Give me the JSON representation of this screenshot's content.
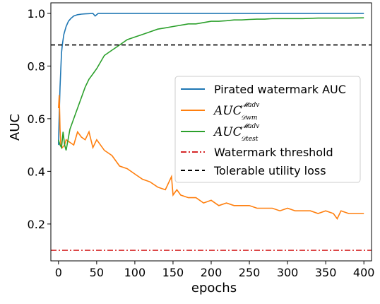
{
  "chart_data": {
    "type": "line",
    "xlabel": "epochs",
    "ylabel": "AUC",
    "xlim": [
      -10,
      410
    ],
    "ylim": [
      0.06,
      1.04
    ],
    "xticks": [
      0,
      50,
      100,
      150,
      200,
      250,
      300,
      350,
      400
    ],
    "yticks": [
      0.2,
      0.4,
      0.6,
      0.8,
      1.0
    ],
    "xtick_labels": [
      "0",
      "50",
      "100",
      "150",
      "200",
      "250",
      "300",
      "350",
      "400"
    ],
    "ytick_labels": [
      "0.2",
      "0.4",
      "0.6",
      "0.8",
      "1.0"
    ],
    "legend_position": "center-right",
    "series": [
      {
        "name": "Pirated watermark AUC",
        "color": "#1f77b4",
        "style": "solid",
        "x": [
          0,
          1,
          2,
          3,
          4,
          5,
          7,
          10,
          13,
          16,
          20,
          25,
          30,
          35,
          40,
          45,
          48,
          50,
          52,
          60,
          80,
          100,
          150,
          200,
          250,
          300,
          350,
          400
        ],
        "y": [
          0.5,
          0.62,
          0.72,
          0.79,
          0.85,
          0.88,
          0.92,
          0.95,
          0.97,
          0.98,
          0.99,
          0.995,
          0.997,
          0.998,
          0.999,
          1.0,
          0.99,
          0.995,
          1.0,
          1.0,
          1.0,
          1.0,
          1.0,
          1.0,
          1.0,
          1.0,
          1.0,
          1.0
        ]
      },
      {
        "name": "AUC_wm",
        "color": "#ff7f0e",
        "style": "solid",
        "x": [
          0,
          1,
          2,
          3,
          5,
          8,
          10,
          15,
          20,
          25,
          30,
          35,
          40,
          45,
          50,
          60,
          70,
          80,
          90,
          100,
          110,
          120,
          130,
          140,
          148,
          150,
          155,
          160,
          170,
          180,
          190,
          200,
          210,
          220,
          230,
          240,
          250,
          260,
          270,
          280,
          290,
          300,
          310,
          320,
          330,
          340,
          350,
          360,
          365,
          370,
          380,
          390,
          400
        ],
        "y": [
          0.64,
          0.69,
          0.56,
          0.5,
          0.49,
          0.5,
          0.52,
          0.51,
          0.5,
          0.55,
          0.53,
          0.52,
          0.55,
          0.49,
          0.52,
          0.48,
          0.46,
          0.42,
          0.41,
          0.39,
          0.37,
          0.36,
          0.34,
          0.33,
          0.38,
          0.31,
          0.33,
          0.31,
          0.3,
          0.3,
          0.28,
          0.29,
          0.27,
          0.28,
          0.27,
          0.27,
          0.27,
          0.26,
          0.26,
          0.26,
          0.25,
          0.26,
          0.25,
          0.25,
          0.25,
          0.24,
          0.25,
          0.24,
          0.22,
          0.25,
          0.24,
          0.24,
          0.24
        ]
      },
      {
        "name": "AUC_test",
        "color": "#2ca02c",
        "style": "solid",
        "x": [
          0,
          2,
          4,
          6,
          8,
          10,
          15,
          20,
          25,
          30,
          35,
          40,
          45,
          50,
          60,
          70,
          80,
          90,
          100,
          110,
          120,
          130,
          140,
          150,
          160,
          170,
          180,
          190,
          200,
          210,
          220,
          230,
          240,
          250,
          260,
          270,
          280,
          290,
          300,
          320,
          340,
          360,
          380,
          400
        ],
        "y": [
          0.52,
          0.5,
          0.49,
          0.55,
          0.5,
          0.48,
          0.56,
          0.6,
          0.64,
          0.68,
          0.72,
          0.75,
          0.77,
          0.79,
          0.84,
          0.86,
          0.88,
          0.9,
          0.91,
          0.92,
          0.93,
          0.94,
          0.945,
          0.95,
          0.955,
          0.96,
          0.96,
          0.965,
          0.97,
          0.97,
          0.972,
          0.975,
          0.975,
          0.977,
          0.978,
          0.978,
          0.98,
          0.98,
          0.98,
          0.98,
          0.982,
          0.982,
          0.982,
          0.983
        ]
      },
      {
        "name": "Watermark threshold",
        "color": "#d62728",
        "style": "dashdot",
        "y_const": 0.1
      },
      {
        "name": "Tolerable utility loss",
        "color": "#000000",
        "style": "dashed",
        "y_const": 0.88
      }
    ]
  }
}
